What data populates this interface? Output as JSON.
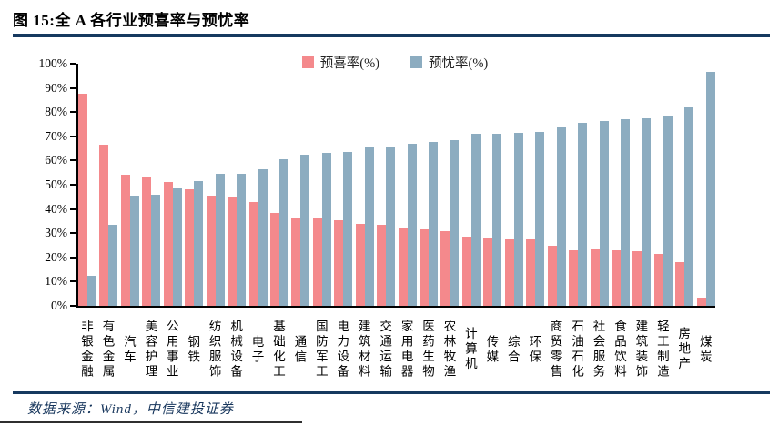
{
  "figure": {
    "title": "图 15:全 A 各行业预喜率与预忧率",
    "source": "数据来源：Wind，中信建投证券"
  },
  "legend": {
    "positive_label": "预喜率(%)",
    "negative_label": "预忧率(%)"
  },
  "colors": {
    "positive_bar": "#F4898C",
    "negative_bar": "#8CACC0",
    "rule_navy": "#16395F",
    "axis": "#000000",
    "source_text": "#17365C"
  },
  "chart_data": {
    "type": "bar",
    "title": "图 15:全 A 各行业预喜率与预忧率",
    "categories": [
      "非银金融",
      "有色金属",
      "汽车",
      "美容护理",
      "公用事业",
      "钢铁",
      "纺织服饰",
      "机械设备",
      "电子",
      "基础化工",
      "通信",
      "国防军工",
      "电力设备",
      "建筑材料",
      "交通运输",
      "家用电器",
      "医药生物",
      "农林牧渔",
      "计算机",
      "传媒",
      "综合",
      "环保",
      "商贸零售",
      "石油石化",
      "社会服务",
      "食品饮料",
      "建筑装饰",
      "轻工制造",
      "房地产",
      "煤炭"
    ],
    "series": [
      {
        "name": "预喜率(%)",
        "color": "#F4898C",
        "values": [
          87.5,
          66.5,
          54,
          53.5,
          51,
          48,
          45.5,
          45,
          43,
          38.5,
          36.5,
          36,
          35.5,
          34,
          33.5,
          32,
          31.5,
          31,
          28.5,
          28,
          27.5,
          27.5,
          25,
          23,
          23.5,
          23,
          22.5,
          21.5,
          18,
          3.5
        ]
      },
      {
        "name": "预忧率(%)",
        "color": "#8CACC0",
        "values": [
          12.5,
          33.5,
          45.5,
          46,
          49,
          51.5,
          54.5,
          54.5,
          56.5,
          60.5,
          62.5,
          63,
          63.5,
          65.5,
          65.5,
          67,
          67.5,
          68.5,
          71,
          71,
          71.5,
          72,
          74,
          75.5,
          76.5,
          77,
          77.5,
          78.5,
          82,
          96.5
        ]
      }
    ],
    "xlabel": "",
    "ylabel": "",
    "ylim": [
      0,
      100
    ],
    "ytick_step": 10,
    "ytick_labels": [
      "0%",
      "10%",
      "20%",
      "30%",
      "40%",
      "50%",
      "60%",
      "70%",
      "80%",
      "90%",
      "100%"
    ],
    "legend_position": "top-center",
    "grid": false
  }
}
